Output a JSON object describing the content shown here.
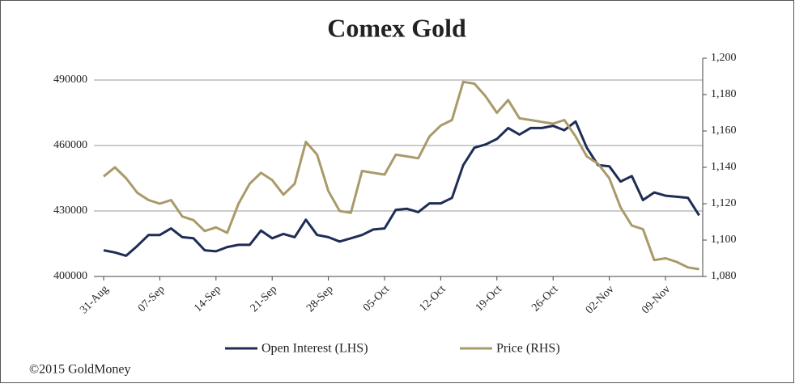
{
  "chart_data": {
    "type": "line",
    "title": "Comex Gold",
    "categories": [
      "31-Aug",
      null,
      null,
      null,
      null,
      "07-Sep",
      null,
      null,
      null,
      null,
      "14-Sep",
      null,
      null,
      null,
      null,
      "21-Sep",
      null,
      null,
      null,
      null,
      "28-Sep",
      null,
      null,
      null,
      null,
      "05-Oct",
      null,
      null,
      null,
      null,
      "12-Oct",
      null,
      null,
      null,
      null,
      "19-Oct",
      null,
      null,
      null,
      null,
      "26-Oct",
      null,
      null,
      null,
      null,
      "02-Nov",
      null,
      null,
      null,
      null,
      "09-Nov",
      null,
      null,
      null
    ],
    "series": [
      {
        "name": "Open Interest (LHS)",
        "color": "#1f2d56",
        "axis": "y",
        "values": [
          412000,
          411000,
          409500,
          414000,
          419000,
          419000,
          422000,
          418000,
          417500,
          412000,
          411500,
          413500,
          414500,
          414500,
          421000,
          417500,
          419500,
          418000,
          426000,
          419000,
          418000,
          416000,
          417500,
          419000,
          421500,
          422000,
          430500,
          431000,
          429500,
          433500,
          433500,
          436000,
          451000,
          459000,
          460500,
          463000,
          468000,
          465000,
          468000,
          468000,
          469000,
          467000,
          471000,
          459000,
          451000,
          450500,
          443500,
          446000,
          435000,
          438500,
          437000,
          436500,
          436000,
          428000
        ]
      },
      {
        "name": "Price (RHS)",
        "color": "#a89a6a",
        "axis": "y2",
        "values": [
          1135,
          1140,
          1134,
          1126,
          1122,
          1120,
          1122,
          1113,
          1111,
          1105,
          1107,
          1104,
          1120,
          1131,
          1137,
          1133,
          1125,
          1131,
          1154,
          1147,
          1127,
          1116,
          1115,
          1138,
          1137,
          1136,
          1147,
          1146,
          1145,
          1157,
          1163,
          1166,
          1187,
          1186,
          1179,
          1170,
          1177,
          1167,
          1166,
          1165,
          1164,
          1166,
          1157,
          1146,
          1142,
          1134,
          1118,
          1108,
          1106,
          1089,
          1090,
          1088,
          1085,
          1084
        ]
      }
    ],
    "ylim": [
      400000,
      500000
    ],
    "yticks": [
      400000,
      430000,
      460000,
      490000
    ],
    "y2lim": [
      1080,
      1200
    ],
    "y2ticks": [
      {
        "value": 1080,
        "label": "1,080"
      },
      {
        "value": 1100,
        "label": "1,100"
      },
      {
        "value": 1120,
        "label": "1,120"
      },
      {
        "value": 1140,
        "label": "1,140"
      },
      {
        "value": 1160,
        "label": "1,160"
      },
      {
        "value": 1180,
        "label": "1,180"
      },
      {
        "value": 1200,
        "label": "1,200"
      }
    ],
    "grid": true,
    "legend": "bottom",
    "footer": "©2015 GoldMoney"
  }
}
